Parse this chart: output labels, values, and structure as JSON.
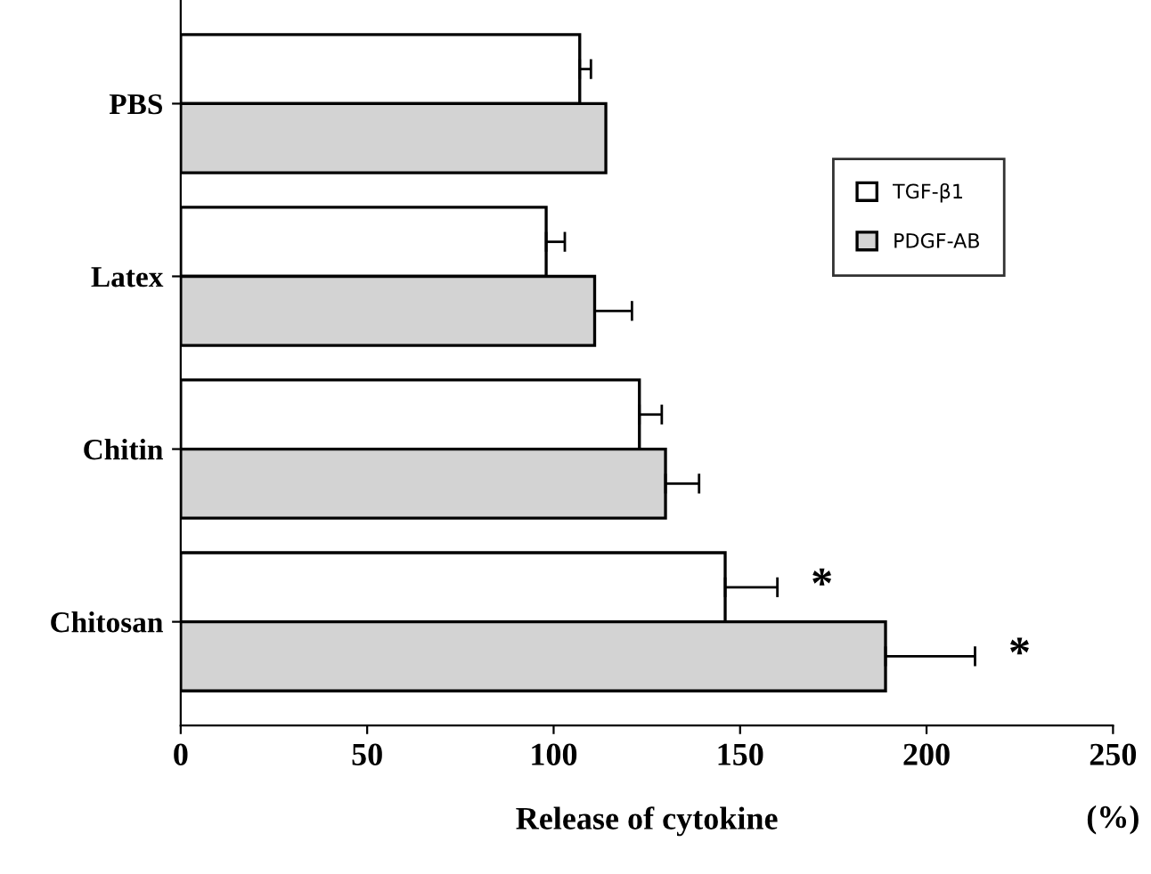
{
  "chart_data": {
    "type": "bar",
    "orientation": "horizontal",
    "xlabel": "Release of cytokine",
    "categories": [
      "PBS",
      "Latex",
      "Chitin",
      "Chitosan"
    ],
    "series": [
      {
        "name": "TGF-β1",
        "color": "#ffffff",
        "values": [
          107,
          98,
          123,
          146
        ],
        "errors": [
          [
            107,
            110
          ],
          [
            98,
            103
          ],
          [
            123,
            129
          ],
          [
            146,
            160
          ]
        ]
      },
      {
        "name": "PDGF-AB",
        "color": "#d3d3d3",
        "values": [
          114,
          111,
          130,
          189
        ],
        "errors": [
          [
            114,
            114
          ],
          [
            111,
            121
          ],
          [
            130,
            139
          ],
          [
            189,
            213
          ]
        ]
      }
    ],
    "xlim": [
      0,
      250
    ],
    "xticks": [
      0,
      50,
      100,
      150,
      200,
      250
    ],
    "annotations": [
      "*",
      "*",
      "(%)"
    ],
    "legend": "top right",
    "grid": false
  }
}
